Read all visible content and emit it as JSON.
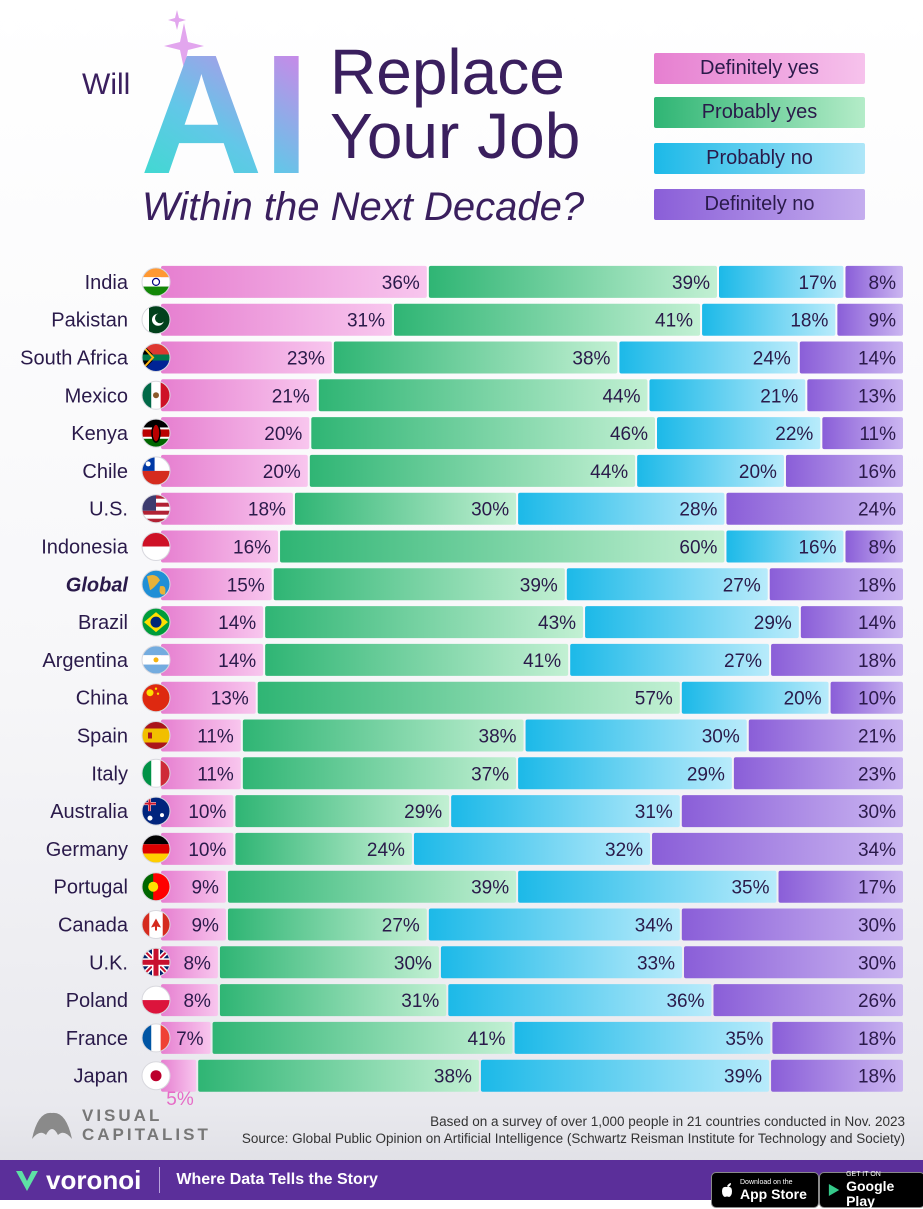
{
  "title": {
    "will": "Will",
    "ai": "AI",
    "line1": "Replace",
    "line2": "Your Job",
    "subtitle": "Within the Next Decade?"
  },
  "chart_data": {
    "type": "bar",
    "orientation": "horizontal-stacked-100",
    "series": [
      {
        "name": "Definitely yes",
        "color": "#e67fd0",
        "values": [
          36,
          31,
          23,
          21,
          20,
          20,
          18,
          16,
          15,
          14,
          14,
          13,
          11,
          11,
          10,
          10,
          9,
          9,
          8,
          8,
          7,
          5
        ]
      },
      {
        "name": "Probably yes",
        "color": "#2fb574",
        "values": [
          39,
          41,
          38,
          44,
          46,
          44,
          30,
          60,
          39,
          43,
          41,
          57,
          38,
          37,
          29,
          24,
          39,
          27,
          30,
          31,
          41,
          38
        ]
      },
      {
        "name": "Probably no",
        "color": "#1cb9e8",
        "values": [
          17,
          18,
          24,
          21,
          22,
          20,
          28,
          16,
          27,
          29,
          27,
          20,
          30,
          29,
          31,
          32,
          35,
          34,
          33,
          36,
          35,
          39
        ]
      },
      {
        "name": "Definitely no",
        "color": "#8a5ed8",
        "values": [
          8,
          9,
          14,
          13,
          11,
          16,
          24,
          8,
          18,
          14,
          18,
          10,
          21,
          23,
          30,
          34,
          17,
          30,
          30,
          26,
          18,
          18
        ]
      }
    ],
    "categories": [
      "India",
      "Pakistan",
      "South Africa",
      "Mexico",
      "Kenya",
      "Chile",
      "U.S.",
      "Indonesia",
      "Global",
      "Brazil",
      "Argentina",
      "China",
      "Spain",
      "Italy",
      "Australia",
      "Germany",
      "Portugal",
      "Canada",
      "U.K.",
      "Poland",
      "France",
      "Japan"
    ],
    "flags": [
      "india",
      "pakistan",
      "south-africa",
      "mexico",
      "kenya",
      "chile",
      "usa",
      "indonesia",
      "globe",
      "brazil",
      "argentina",
      "china",
      "spain",
      "italy",
      "australia",
      "germany",
      "portugal",
      "canada",
      "uk",
      "poland",
      "france",
      "japan"
    ],
    "highlight": "Global",
    "label_suffix": "%",
    "legend_position": "top-right"
  },
  "japan_small_label": "5%",
  "notes": {
    "line1": "Based on a survey of over 1,000 people in 21 countries conducted in Nov. 2023",
    "line2": "Source: Global Public Opinion on Artificial Intelligence (Schwartz Reisman Institute for Technology and Society)"
  },
  "brand": {
    "publisher_line1": "VISUAL",
    "publisher_line2": "CAPITALIST",
    "name": "voronoi",
    "tagline": "Where Data Tells the Story",
    "apple_small": "Download on the",
    "apple_big": "App Store",
    "google_small": "GET IT ON",
    "google_big": "Google Play"
  }
}
